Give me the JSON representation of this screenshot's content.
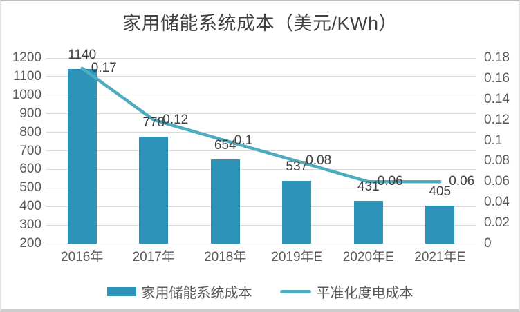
{
  "chart_data": {
    "type": "bar",
    "title": "家用储能系统成本（美元/KWh）",
    "categories": [
      "2016年",
      "2017年",
      "2018年",
      "2019年E",
      "2020年E",
      "2021年E"
    ],
    "series": [
      {
        "name": "家用储能系统成本",
        "type": "bar",
        "axis": "left",
        "values": [
          1140,
          778,
          654,
          537,
          431,
          405
        ],
        "labels": [
          "1140",
          "778",
          "654",
          "537",
          "431",
          "405"
        ],
        "color": "#2e93b8"
      },
      {
        "name": "平准化度电成本",
        "type": "line",
        "axis": "right",
        "values": [
          0.17,
          0.12,
          0.1,
          0.08,
          0.06,
          0.06
        ],
        "labels": [
          "0.17",
          "0.12",
          "0.1",
          "0.08",
          "0.06",
          "0.06"
        ],
        "color": "#4dacbe"
      }
    ],
    "left_axis": {
      "min": 200,
      "max": 1200,
      "step": 100,
      "ticks": [
        "1200",
        "1100",
        "1000",
        "900",
        "800",
        "700",
        "600",
        "500",
        "400",
        "300",
        "200"
      ]
    },
    "right_axis": {
      "min": 0,
      "max": 0.18,
      "step": 0.02,
      "ticks": [
        "0.18",
        "0.16",
        "0.14",
        "0.12",
        "0.1",
        "0.08",
        "0.06",
        "0.04",
        "0.02",
        "0"
      ]
    },
    "grid": true,
    "legend_position": "bottom",
    "colors": {
      "gridline": "#d9d9d9",
      "axis_text": "#595959",
      "data_label_text": "#404040",
      "title_text": "#404040"
    }
  }
}
